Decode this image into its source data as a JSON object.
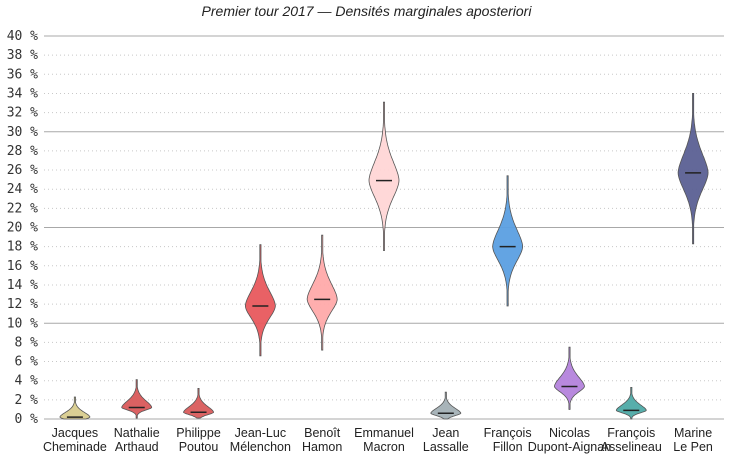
{
  "chart_data": {
    "type": "violin",
    "title": "Premier tour 2017 — Densités marginales aposteriori",
    "xlabel": "",
    "ylabel": "",
    "ylim": [
      0,
      40
    ],
    "y_ticks": [
      "0 %",
      "2 %",
      "4 %",
      "6 %",
      "8 %",
      "10 %",
      "12 %",
      "14 %",
      "16 %",
      "18 %",
      "20 %",
      "22 %",
      "24 %",
      "26 %",
      "28 %",
      "30 %",
      "32 %",
      "34 %",
      "36 %",
      "38 %",
      "40 %"
    ],
    "grid": "horizontal; solid every 10 %, dotted every 2 %",
    "categories": [
      [
        "Jacques",
        "Cheminade"
      ],
      [
        "Nathalie",
        "Arthaud"
      ],
      [
        "Philippe",
        "Poutou"
      ],
      [
        "Jean-Luc",
        "Mélenchon"
      ],
      [
        "Benoît",
        "Hamon"
      ],
      [
        "Emmanuel",
        "Macron"
      ],
      [
        "Jean",
        "Lassalle"
      ],
      [
        "François",
        "Fillon"
      ],
      [
        "Nicolas",
        "Dupont-Aignan"
      ],
      [
        "François",
        "Asselineau"
      ],
      [
        "Marine",
        "Le Pen"
      ]
    ],
    "series": [
      {
        "median": 0.2,
        "min": 0.0,
        "max": 2.3,
        "color": "#d8cc8e"
      },
      {
        "median": 1.2,
        "min": 0.1,
        "max": 4.1,
        "color": "#d9595a"
      },
      {
        "median": 0.7,
        "min": 0.1,
        "max": 3.2,
        "color": "#d95c5c"
      },
      {
        "median": 11.8,
        "min": 6.6,
        "max": 18.2,
        "color": "#e8585d"
      },
      {
        "median": 12.5,
        "min": 7.2,
        "max": 19.2,
        "color": "#ffaaaa"
      },
      {
        "median": 24.9,
        "min": 17.6,
        "max": 33.1,
        "color": "#ffd6d6"
      },
      {
        "median": 0.6,
        "min": 0.0,
        "max": 2.8,
        "color": "#a3b0b5"
      },
      {
        "median": 18.0,
        "min": 11.8,
        "max": 25.4,
        "color": "#5b9fe2"
      },
      {
        "median": 3.4,
        "min": 1.0,
        "max": 7.5,
        "color": "#b483dc"
      },
      {
        "median": 0.9,
        "min": 0.0,
        "max": 3.3,
        "color": "#4eaaa6"
      },
      {
        "median": 25.7,
        "min": 18.3,
        "max": 34.0,
        "color": "#5b6094"
      }
    ]
  }
}
